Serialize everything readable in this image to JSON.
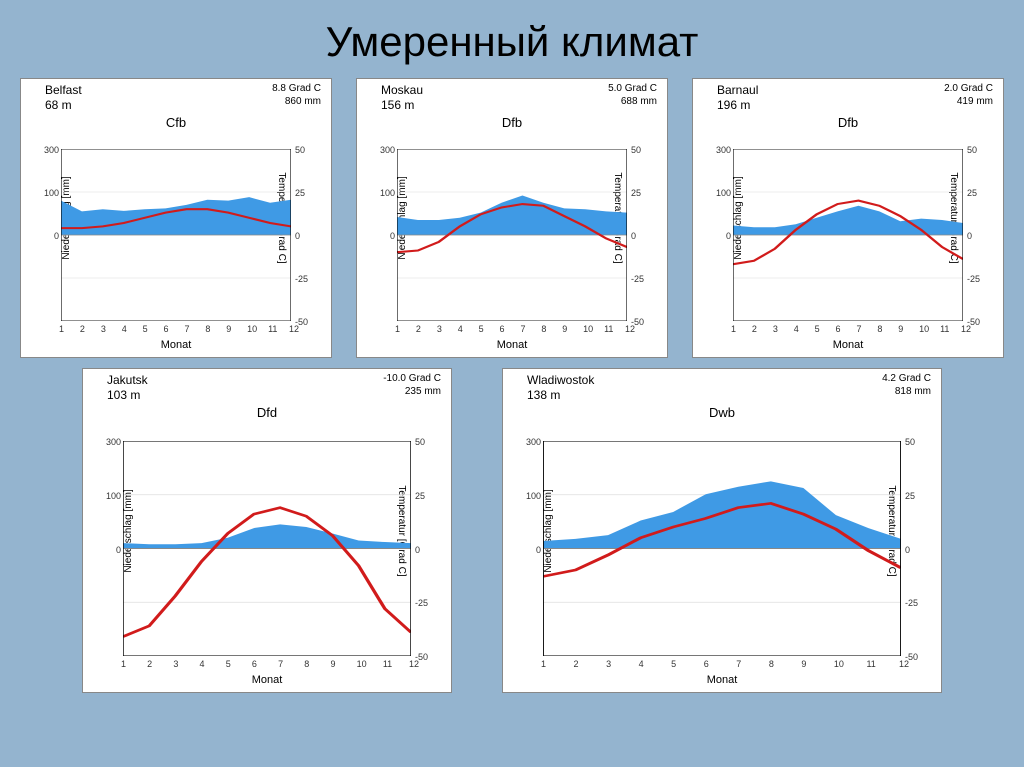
{
  "title": "Умеренный климат",
  "axis_labels": {
    "y1": "Niederschlag [mm]",
    "y2": "Temperatur [Grad C]",
    "x": "Monat"
  },
  "precip_axis": {
    "min": 0,
    "max": 300,
    "ticks": [
      0,
      100,
      300
    ],
    "tick_labels": [
      "0",
      "100",
      "300"
    ]
  },
  "temp_axis": {
    "min": -50,
    "max": 50,
    "ticks": [
      -50,
      -25,
      0,
      25,
      50
    ],
    "tick_labels": [
      "-50",
      "-25",
      "0",
      "25",
      "50"
    ]
  },
  "xticks": [
    "1",
    "2",
    "3",
    "4",
    "5",
    "6",
    "7",
    "8",
    "9",
    "10",
    "11",
    "12"
  ],
  "colors": {
    "precip_fill": "#3f9ae5",
    "temp_line": "#d11b1b",
    "grid": "#dddddd",
    "zero_line": "#888888",
    "axis": "#000000"
  },
  "charts": [
    {
      "id": "belfast",
      "size": "small",
      "row": 1,
      "city": "Belfast",
      "elevation": "68  m",
      "mean_temp": "8.8  Grad  C",
      "annual_precip": "860  mm",
      "code": "Cfb",
      "precip": [
        80,
        55,
        60,
        56,
        60,
        62,
        70,
        82,
        80,
        88,
        75,
        82
      ],
      "temp": [
        4,
        4,
        5,
        7,
        10,
        13,
        15,
        15,
        13,
        10,
        7,
        5
      ]
    },
    {
      "id": "moskau",
      "size": "small",
      "row": 1,
      "city": "Moskau",
      "elevation": "156  m",
      "mean_temp": "5.0  Grad  C",
      "annual_precip": "688  mm",
      "code": "Dfb",
      "precip": [
        42,
        35,
        35,
        40,
        52,
        75,
        92,
        75,
        62,
        60,
        55,
        52
      ],
      "temp": [
        -10,
        -9,
        -4,
        5,
        12,
        16,
        18,
        17,
        11,
        5,
        -2,
        -7
      ]
    },
    {
      "id": "barnaul",
      "size": "small",
      "row": 1,
      "city": "Barnaul",
      "elevation": "196  m",
      "mean_temp": "2.0  Grad  C",
      "annual_precip": "419  mm",
      "code": "Dfb",
      "precip": [
        22,
        18,
        18,
        25,
        40,
        55,
        68,
        55,
        32,
        38,
        35,
        28
      ],
      "temp": [
        -17,
        -15,
        -8,
        3,
        12,
        18,
        20,
        17,
        11,
        3,
        -7,
        -14
      ]
    },
    {
      "id": "jakutsk",
      "size": "med",
      "row": 2,
      "city": "Jakutsk",
      "elevation": "103  m",
      "mean_temp": "-10.0  Grad  C",
      "annual_precip": "235  mm",
      "code": "Dfd",
      "precip": [
        10,
        8,
        8,
        10,
        20,
        38,
        45,
        40,
        28,
        15,
        12,
        10
      ],
      "temp": [
        -41,
        -36,
        -22,
        -6,
        7,
        16,
        19,
        15,
        6,
        -8,
        -28,
        -39
      ]
    },
    {
      "id": "wladiwostok",
      "size": "big",
      "row": 2,
      "city": "Wladiwostok",
      "elevation": "138  m",
      "mean_temp": "4.2  Grad  C",
      "annual_precip": "818  mm",
      "code": "Dwb",
      "precip": [
        14,
        18,
        25,
        52,
        68,
        102,
        130,
        150,
        125,
        62,
        38,
        18
      ],
      "temp": [
        -13,
        -10,
        -3,
        5,
        10,
        14,
        19,
        21,
        16,
        9,
        -1,
        -9
      ]
    }
  ]
}
